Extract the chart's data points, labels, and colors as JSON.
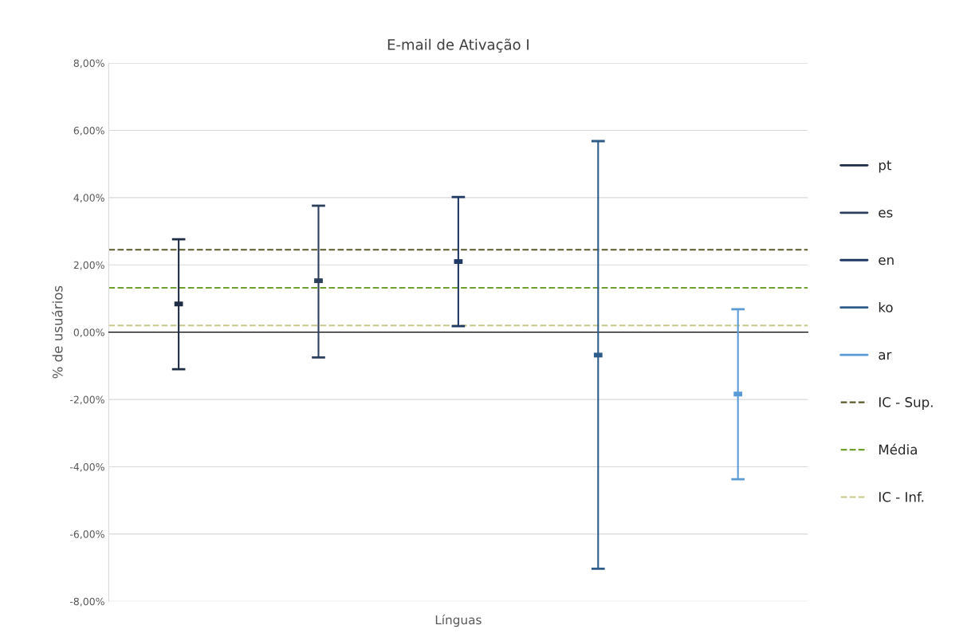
{
  "chart_data": {
    "type": "scatter",
    "title": "E-mail de Ativação I",
    "xlabel": "Línguas",
    "ylabel": "% de usuários",
    "categories": [
      null,
      null,
      null,
      null,
      null
    ],
    "series": [
      {
        "name": "pt",
        "color": "#1f2d44",
        "values": [
          0.84,
          null,
          null,
          null,
          null
        ],
        "errors": [
          [
            -1.1,
            2.76
          ],
          null,
          null,
          null,
          null
        ]
      },
      {
        "name": "es",
        "color": "#2b3f5c",
        "values": [
          null,
          1.53,
          null,
          null,
          null
        ],
        "errors": [
          null,
          [
            -0.75,
            3.76
          ],
          null,
          null,
          null
        ]
      },
      {
        "name": "en",
        "color": "#203864",
        "values": [
          null,
          null,
          2.1,
          null,
          null
        ],
        "errors": [
          null,
          null,
          [
            0.18,
            4.02
          ],
          null,
          null
        ]
      },
      {
        "name": "ko",
        "color": "#2e5c8a",
        "values": [
          null,
          null,
          null,
          -0.68,
          null
        ],
        "errors": [
          null,
          null,
          null,
          [
            -7.03,
            5.68
          ],
          null
        ]
      },
      {
        "name": "ar",
        "color": "#5b9bd5",
        "values": [
          null,
          null,
          null,
          null,
          -1.84
        ],
        "errors": [
          null,
          null,
          null,
          null,
          [
            -4.37,
            0.68
          ]
        ]
      }
    ],
    "ref_lines": [
      {
        "axis": "y",
        "value": 2.45,
        "label": "IC - Sup.",
        "color": "#5a5a2a",
        "line_style": "dashed"
      },
      {
        "axis": "y",
        "value": 1.32,
        "label": "Média",
        "color": "#70a030",
        "line_style": "dashed"
      },
      {
        "axis": "y",
        "value": 0.2,
        "label": "IC - Inf.",
        "color": "#c8c88a",
        "line_style": "dashed"
      }
    ],
    "ylim": [
      -8,
      8
    ],
    "yticks": [
      {
        "value": -8,
        "label": "-8,00%"
      },
      {
        "value": -6,
        "label": "-6,00%"
      },
      {
        "value": -4,
        "label": "-4,00%"
      },
      {
        "value": -2,
        "label": "-2,00%"
      },
      {
        "value": 0,
        "label": "0,00%"
      },
      {
        "value": 2,
        "label": "2,00%"
      },
      {
        "value": 4,
        "label": "4,00%"
      },
      {
        "value": 6,
        "label": "6,00%"
      },
      {
        "value": 8,
        "label": "8,00%"
      }
    ],
    "tick_labels": "y",
    "grid": "y",
    "legend": "right"
  }
}
